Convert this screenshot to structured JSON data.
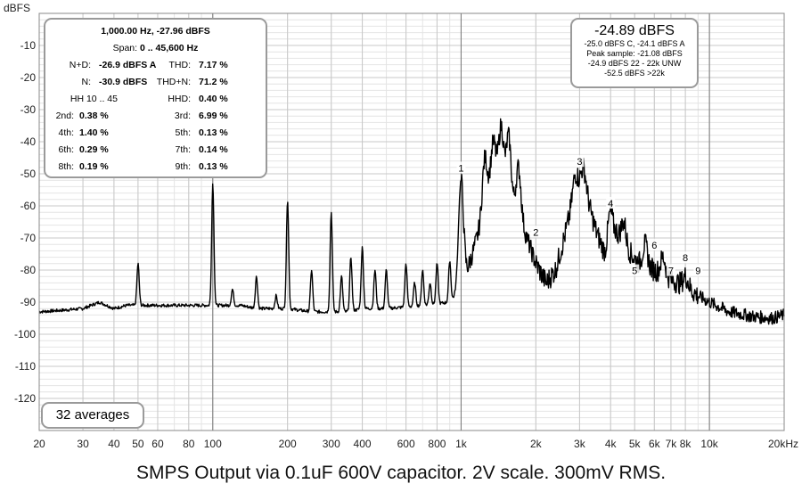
{
  "chart_data": {
    "type": "line",
    "title": "SMPS Output via 0.1uF 600V capacitor. 2V scale. 300mV RMS.",
    "ylabel": "dBFS",
    "xunit": "kHz",
    "xscale": "log",
    "xlim": [
      20,
      20000
    ],
    "ylim": [
      -130,
      0
    ],
    "yticks": [
      -10,
      -20,
      -30,
      -40,
      -50,
      -60,
      -70,
      -80,
      -90,
      -100,
      -110,
      -120
    ],
    "xticks": [
      {
        "v": 20,
        "t": "20"
      },
      {
        "v": 30,
        "t": "30"
      },
      {
        "v": 40,
        "t": "40"
      },
      {
        "v": 50,
        "t": "50"
      },
      {
        "v": 60,
        "t": "60"
      },
      {
        "v": 80,
        "t": "80"
      },
      {
        "v": 100,
        "t": "100"
      },
      {
        "v": 200,
        "t": "200"
      },
      {
        "v": 300,
        "t": "300"
      },
      {
        "v": 400,
        "t": "400"
      },
      {
        "v": 600,
        "t": "600"
      },
      {
        "v": 800,
        "t": "800"
      },
      {
        "v": 1000,
        "t": "1k"
      },
      {
        "v": 2000,
        "t": "2k"
      },
      {
        "v": 3000,
        "t": "3k"
      },
      {
        "v": 4000,
        "t": "4k"
      },
      {
        "v": 5000,
        "t": "5k"
      },
      {
        "v": 6000,
        "t": "6k"
      },
      {
        "v": 7000,
        "t": "7k"
      },
      {
        "v": 8000,
        "t": "8k"
      },
      {
        "v": 10000,
        "t": "10k"
      },
      {
        "v": 20000,
        "t": "20kHz"
      }
    ],
    "grid": true,
    "baseline": [
      [
        20,
        -93
      ],
      [
        25,
        -92.5
      ],
      [
        30,
        -92
      ],
      [
        35,
        -90
      ],
      [
        40,
        -92
      ],
      [
        45,
        -91
      ],
      [
        60,
        -91
      ],
      [
        70,
        -91
      ],
      [
        80,
        -91
      ],
      [
        90,
        -91
      ],
      [
        110,
        -91
      ],
      [
        130,
        -91
      ],
      [
        150,
        -92
      ],
      [
        170,
        -92
      ],
      [
        200,
        -92
      ],
      [
        250,
        -93
      ],
      [
        300,
        -93
      ],
      [
        350,
        -93
      ],
      [
        400,
        -92
      ],
      [
        500,
        -92
      ],
      [
        600,
        -91.5
      ],
      [
        700,
        -91
      ],
      [
        800,
        -90.5
      ],
      [
        900,
        -90
      ],
      [
        950,
        -88
      ],
      [
        1050,
        -81
      ],
      [
        1100,
        -76
      ],
      [
        1200,
        -66
      ],
      [
        1300,
        -55
      ],
      [
        1400,
        -50
      ],
      [
        1500,
        -53
      ],
      [
        1600,
        -59
      ],
      [
        1800,
        -68
      ],
      [
        2000,
        -78
      ],
      [
        2200,
        -84
      ],
      [
        2400,
        -80
      ],
      [
        2600,
        -70
      ],
      [
        2800,
        -60
      ],
      [
        3000,
        -54
      ],
      [
        3200,
        -57
      ],
      [
        3500,
        -68
      ],
      [
        3800,
        -75
      ],
      [
        4200,
        -68
      ],
      [
        4600,
        -73
      ],
      [
        5200,
        -78
      ],
      [
        6000,
        -80
      ],
      [
        7000,
        -83
      ],
      [
        8000,
        -85
      ],
      [
        9000,
        -88
      ],
      [
        10000,
        -90
      ],
      [
        12000,
        -93
      ],
      [
        15000,
        -94.5
      ],
      [
        18000,
        -95
      ],
      [
        20000,
        -94
      ]
    ],
    "peaks": [
      [
        50,
        -78
      ],
      [
        100,
        -53
      ],
      [
        120,
        -86
      ],
      [
        150,
        -82
      ],
      [
        180,
        -88
      ],
      [
        200,
        -58
      ],
      [
        250,
        -80
      ],
      [
        300,
        -62
      ],
      [
        330,
        -82
      ],
      [
        360,
        -76
      ],
      [
        400,
        -73
      ],
      [
        450,
        -80
      ],
      [
        500,
        -80
      ],
      [
        600,
        -78
      ],
      [
        650,
        -84
      ],
      [
        700,
        -80
      ],
      [
        750,
        -84
      ],
      [
        800,
        -78
      ],
      [
        900,
        -77
      ],
      [
        1000,
        -52
      ],
      [
        1250,
        -45
      ],
      [
        1350,
        -40
      ],
      [
        1450,
        -35
      ],
      [
        1550,
        -38
      ],
      [
        1700,
        -48
      ],
      [
        2900,
        -50
      ],
      [
        3100,
        -48
      ],
      [
        4000,
        -62
      ],
      [
        4500,
        -65
      ],
      [
        5500,
        -72
      ],
      [
        6500,
        -76
      ],
      [
        8000,
        -82
      ]
    ],
    "harmonic_markers": [
      {
        "label": "1",
        "f": 1000,
        "db": -49
      },
      {
        "label": "2",
        "f": 2000,
        "db": -69
      },
      {
        "label": "3",
        "f": 3000,
        "db": -47
      },
      {
        "label": "4",
        "f": 4000,
        "db": -60
      },
      {
        "label": "5",
        "f": 5000,
        "db": -81
      },
      {
        "label": "6",
        "f": 6000,
        "db": -73
      },
      {
        "label": "7",
        "f": 7000,
        "db": -81
      },
      {
        "label": "8",
        "f": 8000,
        "db": -77
      },
      {
        "label": "9",
        "f": 9000,
        "db": -81
      }
    ]
  },
  "stats": {
    "header": "1,000.00 Hz, -27.96 dBFS",
    "span_label": "Span:",
    "span_value": "0 .. 45,600 Hz",
    "nd_label": "N+D:",
    "nd_value": "-26.9 dBFS A",
    "thd_label": "THD:",
    "thd_value": "7.17 %",
    "n_label": "N:",
    "n_value": "-30.9 dBFS",
    "thdn_label": "THD+N:",
    "thdn_value": "71.2 %",
    "hh_range": "HH 10 .. 45",
    "hhd_label": "HHD:",
    "hhd_value": "0.40 %",
    "h2_label": "2nd:",
    "h2_value": "0.38 %",
    "h3_label": "3rd:",
    "h3_value": "6.99 %",
    "h4_label": "4th:",
    "h4_value": "1.40 %",
    "h5_label": "5th:",
    "h5_value": "0.13 %",
    "h6_label": "6th:",
    "h6_value": "0.29 %",
    "h7_label": "7th:",
    "h7_value": "0.14 %",
    "h8_label": "8th:",
    "h8_value": "0.19 %",
    "h9_label": "9th:",
    "h9_value": "0.13 %"
  },
  "level": {
    "main": "-24.89 dBFS",
    "line1": "-25.0 dBFS C, -24.1 dBFS A",
    "line2": "Peak sample: -21.08 dBFS",
    "line3": "-24.9 dBFS 22 - 22k UNW",
    "line4": "-52.5 dBFS >22k"
  },
  "averages": "32 averages",
  "colors": {
    "trace": "#000000",
    "grid_major": "#c8c8c8",
    "grid_minor": "#e4e4e4",
    "box_border": "#9a9a9a"
  }
}
